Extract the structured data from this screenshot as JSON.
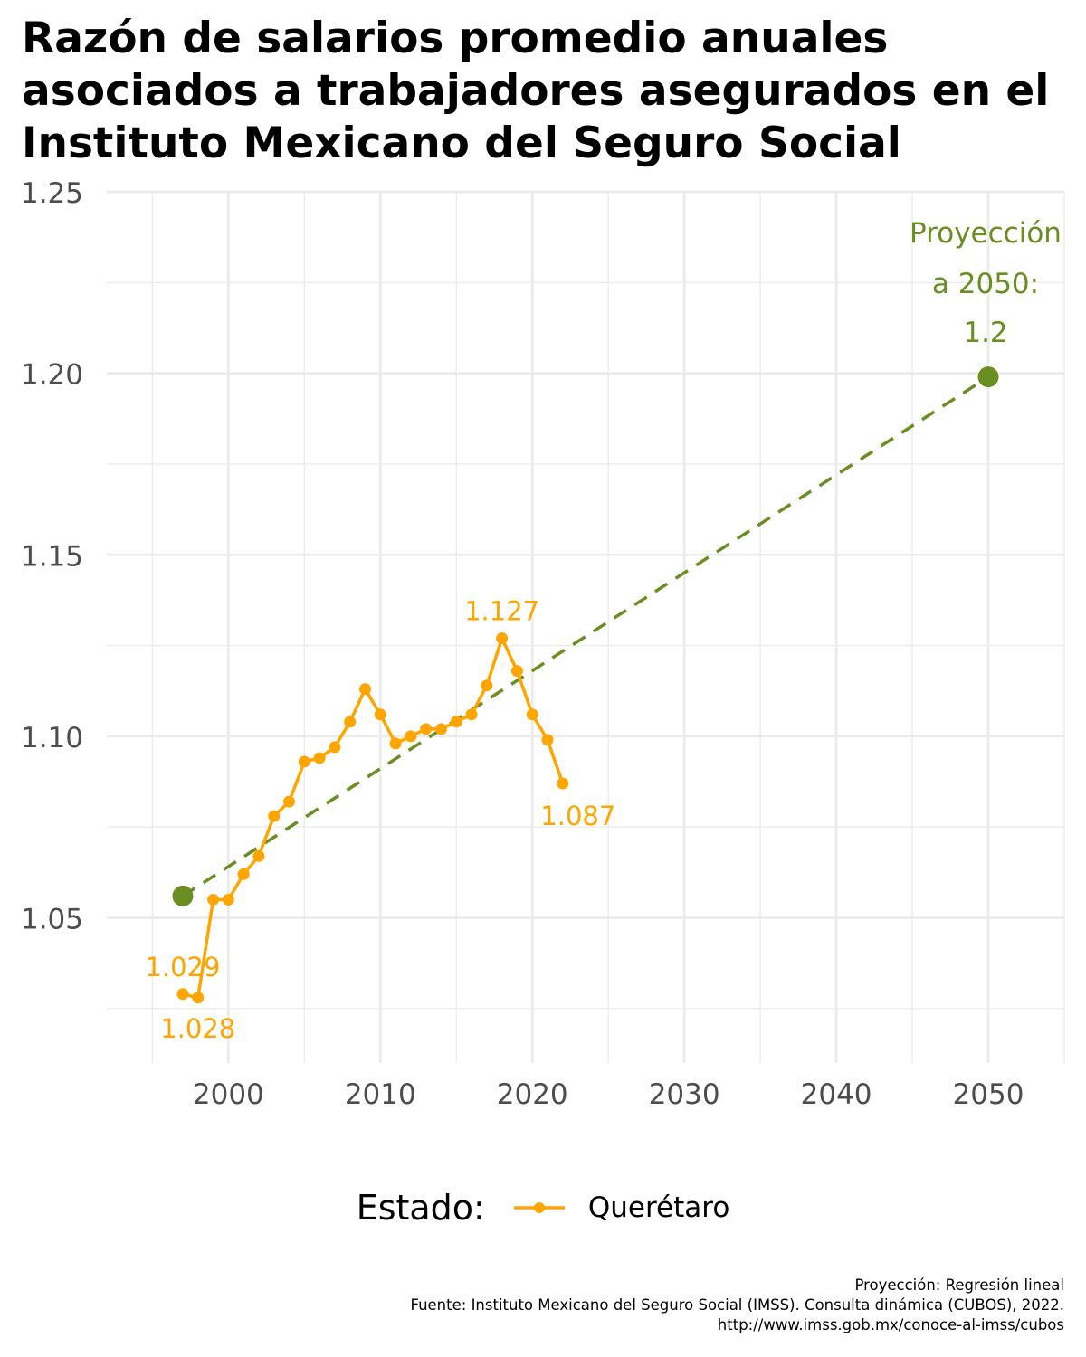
{
  "title": "Razón de salarios promedio anuales asociados a trabajadores asegurados en el Instituto Mexicano del Seguro Social",
  "legend": {
    "title": "Estado:",
    "label": "Querétaro"
  },
  "caption": {
    "line1": "Proyección: Regresión lineal",
    "line2": "Fuente: Instituto Mexicano del Seguro Social (IMSS). Consulta dinámica (CUBOS), 2022.",
    "line3": "http://www.imss.gob.mx/conoce-al-imss/cubos"
  },
  "colors": {
    "series": "#FFA500",
    "projection": "#6B8E23",
    "grid": "#EBEBEB",
    "axis_text": "#4D4D4D"
  },
  "chart_data": {
    "type": "line",
    "xlim": [
      1992,
      2055
    ],
    "ylim": [
      1.01,
      1.25
    ],
    "x_ticks": [
      2000,
      2010,
      2020,
      2030,
      2040,
      2050
    ],
    "x_tick_labels": [
      "2000",
      "2010",
      "2020",
      "2030",
      "2040",
      "2050"
    ],
    "y_ticks": [
      1.05,
      1.1,
      1.15,
      1.2,
      1.25
    ],
    "y_tick_labels": [
      "1.05",
      "1.10",
      "1.15",
      "1.20",
      "1.25"
    ],
    "grid": true,
    "legend_position": "bottom",
    "series": [
      {
        "name": "Querétaro",
        "x": [
          1997,
          1998,
          1999,
          2000,
          2001,
          2002,
          2003,
          2004,
          2005,
          2006,
          2007,
          2008,
          2009,
          2010,
          2011,
          2012,
          2013,
          2014,
          2015,
          2016,
          2017,
          2018,
          2019,
          2020,
          2021,
          2022
        ],
        "y": [
          1.029,
          1.028,
          1.055,
          1.055,
          1.062,
          1.067,
          1.078,
          1.082,
          1.093,
          1.094,
          1.097,
          1.104,
          1.113,
          1.106,
          1.098,
          1.1,
          1.102,
          1.102,
          1.104,
          1.106,
          1.114,
          1.127,
          1.118,
          1.106,
          1.099,
          1.087
        ]
      },
      {
        "x": [
          1997,
          2050
        ],
        "y": [
          1.056,
          1.199
        ]
      }
    ],
    "annotations": [
      {
        "text": "1.029",
        "x": 1997,
        "y": 1.029,
        "series": "Querétaro",
        "pos": "above"
      },
      {
        "text": "1.028",
        "x": 1998,
        "y": 1.028,
        "series": "Querétaro",
        "pos": "below"
      },
      {
        "text": "1.127",
        "x": 2018,
        "y": 1.127,
        "series": "Querétaro",
        "pos": "above"
      },
      {
        "text": "1.087",
        "x": 2022,
        "y": 1.087,
        "series": "Querétaro",
        "pos": "below"
      }
    ],
    "projection_label": [
      "Proyección",
      "a 2050:",
      "1.2"
    ]
  }
}
